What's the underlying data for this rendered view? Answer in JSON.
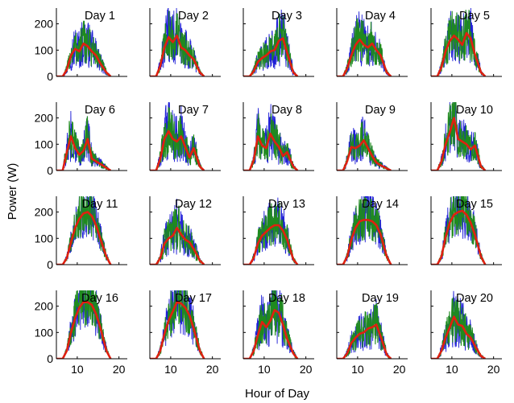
{
  "figure": {
    "ylabel": "Power (W)",
    "xlabel": "Hour of Day"
  },
  "chart_data": {
    "type": "line",
    "layout": "small-multiples-4x5",
    "xlabel": "Hour of Day",
    "ylabel": "Power (W)",
    "xlim": [
      5,
      22
    ],
    "ylim": [
      0,
      260
    ],
    "xticks": [
      10,
      20
    ],
    "yticks": [
      0,
      100,
      200
    ],
    "grid": false,
    "series_colors": {
      "raw_blue": "#1f1fd6",
      "raw_green": "#1f8a1f",
      "smoothed": "#e02010"
    },
    "panels": [
      {
        "title": "Day 1",
        "x": [
          5,
          6.5,
          7.5,
          8.5,
          9.5,
          10.5,
          11.5,
          12.5,
          13.5,
          14.5,
          15.5,
          17,
          18
        ],
        "smooth": [
          0,
          0,
          25,
          80,
          105,
          95,
          125,
          115,
          95,
          80,
          50,
          15,
          0
        ],
        "amp": 1.55
      },
      {
        "title": "Day 2",
        "x": [
          5,
          6.5,
          7.5,
          8.5,
          9.5,
          10.5,
          11.5,
          12.5,
          13.5,
          14.5,
          15.5,
          17,
          18
        ],
        "smooth": [
          0,
          0,
          40,
          110,
          150,
          130,
          155,
          110,
          100,
          80,
          65,
          15,
          0
        ],
        "amp": 1.5
      },
      {
        "title": "Day 3",
        "x": [
          5,
          6.5,
          7.5,
          8.5,
          9.5,
          10.5,
          11.5,
          12.5,
          13.5,
          14.5,
          15.5,
          17,
          18
        ],
        "smooth": [
          0,
          0,
          20,
          55,
          70,
          80,
          95,
          100,
          135,
          145,
          90,
          15,
          0
        ],
        "amp": 1.55
      },
      {
        "title": "Day 4",
        "x": [
          5,
          6.5,
          7.5,
          8.5,
          9.5,
          10.5,
          11.5,
          12.5,
          13.5,
          14.5,
          15.5,
          17,
          18
        ],
        "smooth": [
          0,
          0,
          30,
          80,
          120,
          140,
          120,
          110,
          125,
          100,
          80,
          15,
          0
        ],
        "amp": 1.5
      },
      {
        "title": "Day 5",
        "x": [
          5,
          6.5,
          7.5,
          8.5,
          9.5,
          10.5,
          11.5,
          12.5,
          13.5,
          14.5,
          15.5,
          17,
          18
        ],
        "smooth": [
          0,
          0,
          35,
          95,
          135,
          155,
          140,
          120,
          165,
          145,
          85,
          15,
          0
        ],
        "amp": 1.45
      },
      {
        "title": "Day 6",
        "x": [
          5,
          6.5,
          7.5,
          8.5,
          9.5,
          10.5,
          11.5,
          12.5,
          13.5,
          14.5,
          15.5,
          17,
          18
        ],
        "smooth": [
          0,
          0,
          70,
          130,
          85,
          60,
          75,
          120,
          45,
          35,
          25,
          10,
          0
        ],
        "amp": 1.6
      },
      {
        "title": "Day 7",
        "x": [
          5,
          6.5,
          7.5,
          8.5,
          9.5,
          10.5,
          11.5,
          12.5,
          13.5,
          14.5,
          15.5,
          17,
          18
        ],
        "smooth": [
          0,
          0,
          45,
          120,
          150,
          120,
          110,
          130,
          90,
          50,
          85,
          15,
          0
        ],
        "amp": 1.6
      },
      {
        "title": "Day 8",
        "x": [
          5,
          6.5,
          7.5,
          8.5,
          9.5,
          10.5,
          11.5,
          12.5,
          13.5,
          14.5,
          15.5,
          17,
          18
        ],
        "smooth": [
          0,
          0,
          40,
          130,
          95,
          85,
          140,
          110,
          90,
          55,
          70,
          15,
          0
        ],
        "amp": 1.6
      },
      {
        "title": "Day 9",
        "x": [
          5,
          6.5,
          7.5,
          8.5,
          9.5,
          10.5,
          11.5,
          12.5,
          13.5,
          14.5,
          15.5,
          17,
          18
        ],
        "smooth": [
          0,
          0,
          35,
          90,
          85,
          95,
          115,
          85,
          55,
          30,
          20,
          8,
          0
        ],
        "amp": 1.55
      },
      {
        "title": "Day 10",
        "x": [
          5,
          6.5,
          7.5,
          8.5,
          9.5,
          10.5,
          11.5,
          12.5,
          13.5,
          14.5,
          15.5,
          17,
          18
        ],
        "smooth": [
          0,
          0,
          35,
          100,
          145,
          200,
          120,
          110,
          100,
          80,
          95,
          15,
          0
        ],
        "amp": 1.45
      },
      {
        "title": "Day 11",
        "x": [
          5,
          6.5,
          7.5,
          8.5,
          9.5,
          10.5,
          11.5,
          12.5,
          13.5,
          14.5,
          15.5,
          17,
          18
        ],
        "smooth": [
          0,
          0,
          25,
          85,
          140,
          175,
          195,
          200,
          185,
          150,
          100,
          30,
          0
        ],
        "amp": 1.1
      },
      {
        "title": "Day 12",
        "x": [
          5,
          6.5,
          7.5,
          8.5,
          9.5,
          10.5,
          11.5,
          12.5,
          13.5,
          14.5,
          15.5,
          17,
          18
        ],
        "smooth": [
          0,
          0,
          25,
          80,
          100,
          110,
          140,
          115,
          95,
          85,
          60,
          15,
          0
        ],
        "amp": 1.55
      },
      {
        "title": "Day 13",
        "x": [
          5,
          6.5,
          7.5,
          8.5,
          9.5,
          10.5,
          11.5,
          12.5,
          13.5,
          14.5,
          15.5,
          17,
          18
        ],
        "smooth": [
          0,
          0,
          25,
          80,
          110,
          125,
          140,
          150,
          150,
          130,
          95,
          20,
          0
        ],
        "amp": 1.3
      },
      {
        "title": "Day 14",
        "x": [
          5,
          6.5,
          7.5,
          8.5,
          9.5,
          10.5,
          11.5,
          12.5,
          13.5,
          14.5,
          15.5,
          17,
          18
        ],
        "smooth": [
          0,
          0,
          30,
          95,
          140,
          165,
          170,
          170,
          165,
          150,
          115,
          30,
          0
        ],
        "amp": 1.15
      },
      {
        "title": "Day 15",
        "x": [
          5,
          6.5,
          7.5,
          8.5,
          9.5,
          10.5,
          11.5,
          12.5,
          13.5,
          14.5,
          15.5,
          17,
          18
        ],
        "smooth": [
          0,
          0,
          30,
          105,
          160,
          190,
          200,
          205,
          190,
          160,
          115,
          30,
          0
        ],
        "amp": 1.1
      },
      {
        "title": "Day 16",
        "x": [
          5,
          6.5,
          7.5,
          8.5,
          9.5,
          10.5,
          11.5,
          12.5,
          13.5,
          14.5,
          15.5,
          17,
          18
        ],
        "smooth": [
          0,
          0,
          30,
          100,
          155,
          195,
          215,
          215,
          205,
          170,
          120,
          30,
          0
        ],
        "amp": 1.1
      },
      {
        "title": "Day 17",
        "x": [
          5,
          6.5,
          7.5,
          8.5,
          9.5,
          10.5,
          11.5,
          12.5,
          13.5,
          14.5,
          15.5,
          17,
          18
        ],
        "smooth": [
          0,
          0,
          30,
          95,
          145,
          180,
          215,
          210,
          195,
          165,
          115,
          30,
          0
        ],
        "amp": 1.2
      },
      {
        "title": "Day 18",
        "x": [
          5,
          6.5,
          7.5,
          8.5,
          9.5,
          10.5,
          11.5,
          12.5,
          13.5,
          14.5,
          15.5,
          17,
          18
        ],
        "smooth": [
          0,
          0,
          30,
          90,
          140,
          120,
          145,
          185,
          175,
          130,
          75,
          20,
          0
        ],
        "amp": 1.45
      },
      {
        "title": "Day 19",
        "x": [
          5,
          6.5,
          7.5,
          8.5,
          9.5,
          10.5,
          11.5,
          12.5,
          13.5,
          14.5,
          15.5,
          17,
          18
        ],
        "smooth": [
          0,
          0,
          20,
          60,
          80,
          95,
          100,
          115,
          120,
          130,
          85,
          15,
          0
        ],
        "amp": 1.5
      },
      {
        "title": "Day 20",
        "x": [
          5,
          6.5,
          7.5,
          8.5,
          9.5,
          10.5,
          11.5,
          12.5,
          13.5,
          14.5,
          15.5,
          17,
          18
        ],
        "smooth": [
          0,
          0,
          30,
          80,
          120,
          160,
          130,
          125,
          95,
          80,
          50,
          10,
          0
        ],
        "amp": 1.5
      }
    ]
  }
}
